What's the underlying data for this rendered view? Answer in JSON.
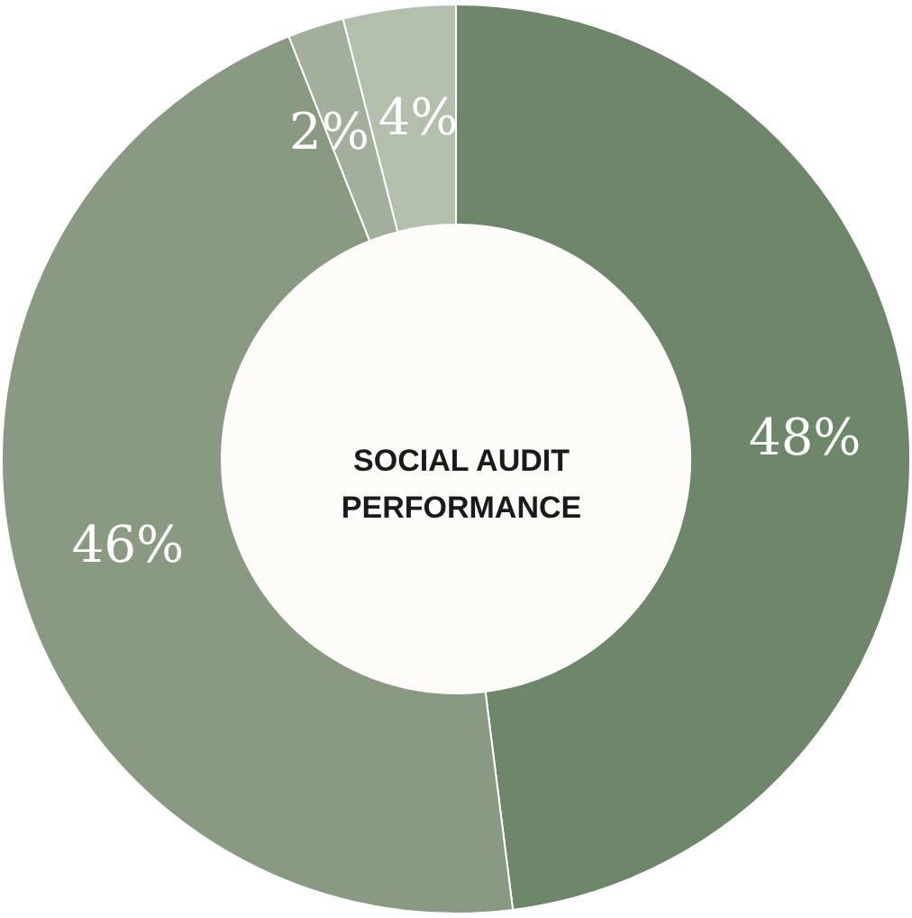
{
  "chart_data": {
    "type": "donut",
    "title": "SOCIAL AUDIT PERFORMANCE",
    "categories": [
      null,
      null,
      null,
      null
    ],
    "values": [
      48,
      46,
      2,
      4
    ],
    "colors": [
      "#6e8669",
      "#8a9a82",
      "#a3ae9c",
      "#b4bead"
    ],
    "value_labels": [
      "48%",
      "46%",
      "2%",
      "4%"
    ]
  }
}
